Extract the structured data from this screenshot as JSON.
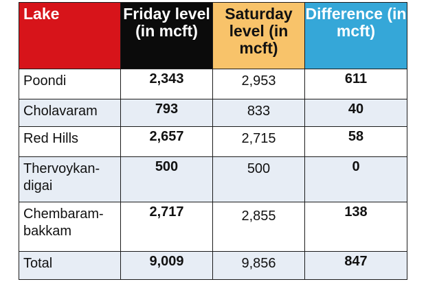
{
  "table": {
    "headers": {
      "lake": "Lake",
      "friday_level": "Friday level (in mcft)",
      "saturday_level": "Saturday level (in mcft)",
      "difference": "Difference (in mcft)"
    },
    "rows": [
      {
        "lake": "Poondi",
        "friday": "2,343",
        "saturday": "2,953",
        "difference": "611"
      },
      {
        "lake": "Cholavaram",
        "friday": "793",
        "saturday": "833",
        "difference": "40"
      },
      {
        "lake": "Red Hills",
        "friday": "2,657",
        "saturday": "2,715",
        "difference": "58"
      },
      {
        "lake": "Thervoykan-digai",
        "friday": "500",
        "saturday": "500",
        "difference": "0"
      },
      {
        "lake": "Chembaram-bakkam",
        "friday": "2,717",
        "saturday": "2,855",
        "difference": "138"
      },
      {
        "lake": "Total",
        "friday": "9,009",
        "saturday": "9,856",
        "difference": "847"
      }
    ]
  },
  "colors": {
    "lake_header": "#d7141a",
    "friday_header": "#0b0b0b",
    "saturday_header": "#f8c36a",
    "difference_header": "#35a7d8",
    "alt_row": "#e7edf5"
  }
}
